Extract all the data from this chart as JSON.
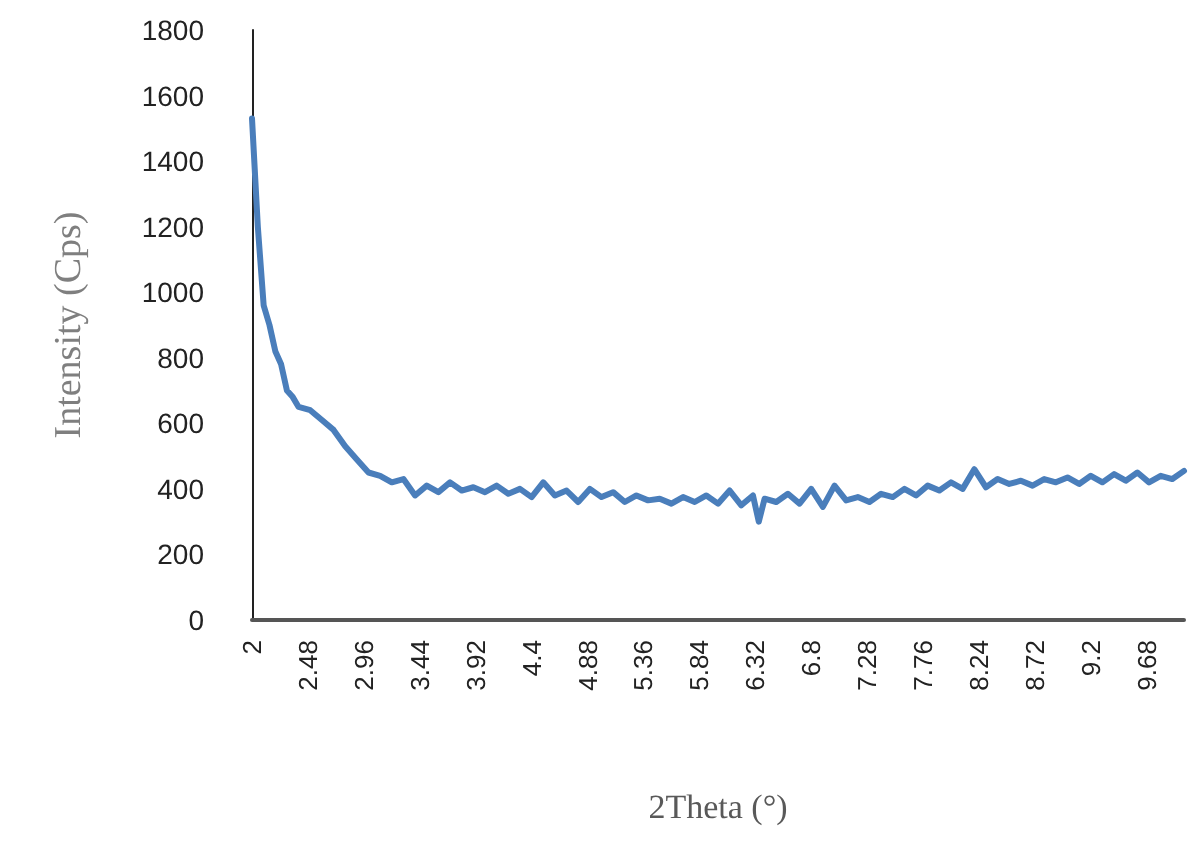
{
  "chart_data": {
    "type": "line",
    "xlabel": "2Theta (°)",
    "ylabel": "Intensity (Cps)",
    "x": [
      2.0,
      2.05,
      2.1,
      2.15,
      2.2,
      2.25,
      2.3,
      2.35,
      2.4,
      2.5,
      2.6,
      2.7,
      2.8,
      2.9,
      3.0,
      3.1,
      3.2,
      3.3,
      3.4,
      3.5,
      3.6,
      3.7,
      3.8,
      3.9,
      4.0,
      4.1,
      4.2,
      4.3,
      4.4,
      4.5,
      4.6,
      4.7,
      4.8,
      4.9,
      5.0,
      5.1,
      5.2,
      5.3,
      5.4,
      5.5,
      5.6,
      5.7,
      5.8,
      5.9,
      6.0,
      6.1,
      6.2,
      6.3,
      6.35,
      6.4,
      6.5,
      6.6,
      6.7,
      6.8,
      6.9,
      7.0,
      7.1,
      7.2,
      7.3,
      7.4,
      7.5,
      7.6,
      7.7,
      7.8,
      7.9,
      8.0,
      8.1,
      8.2,
      8.3,
      8.4,
      8.5,
      8.6,
      8.7,
      8.8,
      8.9,
      9.0,
      9.1,
      9.2,
      9.3,
      9.4,
      9.5,
      9.6,
      9.7,
      9.8,
      9.9,
      10.0
    ],
    "series": [
      {
        "color": "#4a7ebb",
        "values": [
          1530,
          1200,
          960,
          900,
          820,
          780,
          700,
          680,
          650,
          640,
          610,
          580,
          530,
          490,
          450,
          440,
          420,
          430,
          380,
          410,
          390,
          420,
          395,
          405,
          390,
          410,
          385,
          400,
          375,
          420,
          380,
          395,
          360,
          400,
          375,
          390,
          360,
          380,
          365,
          370,
          355,
          375,
          360,
          380,
          355,
          395,
          350,
          380,
          300,
          370,
          360,
          385,
          355,
          400,
          345,
          410,
          365,
          375,
          360,
          385,
          375,
          400,
          380,
          410,
          395,
          420,
          400,
          460,
          405,
          430,
          415,
          425,
          410,
          430,
          420,
          435,
          415,
          440,
          420,
          445,
          425,
          450,
          420,
          440,
          430,
          455
        ]
      }
    ],
    "xlim": [
      2,
      10
    ],
    "xticks": [
      2,
      2.48,
      2.96,
      3.44,
      3.92,
      4.4,
      4.88,
      5.36,
      5.84,
      6.32,
      6.8,
      7.28,
      7.76,
      8.24,
      8.72,
      9.2,
      9.68
    ],
    "ylim": [
      0,
      1800
    ],
    "yticks": [
      0,
      200,
      400,
      600,
      800,
      1000,
      1200,
      1400,
      1600,
      1800
    ],
    "grid": false,
    "marker": "none",
    "line_style": "solid"
  }
}
